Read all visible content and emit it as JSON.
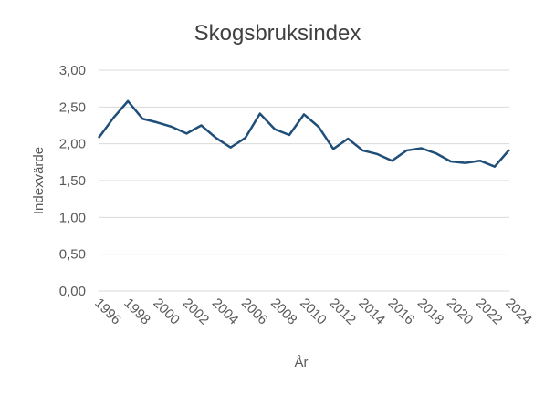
{
  "chart_data": {
    "type": "line",
    "title": "Skogsbruksindex",
    "x_label": "År",
    "y_label": "Indexvärde",
    "x": [
      1996,
      1997,
      1998,
      1999,
      2000,
      2001,
      2002,
      2003,
      2004,
      2005,
      2006,
      2007,
      2008,
      2009,
      2010,
      2011,
      2012,
      2013,
      2014,
      2015,
      2016,
      2017,
      2018,
      2019,
      2020,
      2021,
      2022,
      2023,
      2024
    ],
    "series": [
      {
        "name": "Skogsbruksindex",
        "color": "#1f4e79",
        "values": [
          2.08,
          2.35,
          2.58,
          2.34,
          2.29,
          2.23,
          2.14,
          2.25,
          2.08,
          1.95,
          2.08,
          2.41,
          2.2,
          2.12,
          2.4,
          2.23,
          1.93,
          2.07,
          1.91,
          1.86,
          1.77,
          1.91,
          1.94,
          1.87,
          1.76,
          1.74,
          1.77,
          1.69,
          1.92
        ]
      }
    ],
    "xlim": [
      1996,
      2024
    ],
    "xticks": [
      1996,
      1998,
      2000,
      2002,
      2004,
      2006,
      2008,
      2010,
      2012,
      2014,
      2016,
      2018,
      2020,
      2022,
      2024
    ],
    "ylim": [
      0,
      3
    ],
    "yticks": [
      {
        "value": 0,
        "label": "0,00"
      },
      {
        "value": 0.5,
        "label": "0,50"
      },
      {
        "value": 1,
        "label": "1,00"
      },
      {
        "value": 1.5,
        "label": "1,50"
      },
      {
        "value": 2,
        "label": "2,00"
      },
      {
        "value": 2.5,
        "label": "2,50"
      },
      {
        "value": 3,
        "label": "3,00"
      }
    ],
    "grid": true
  }
}
